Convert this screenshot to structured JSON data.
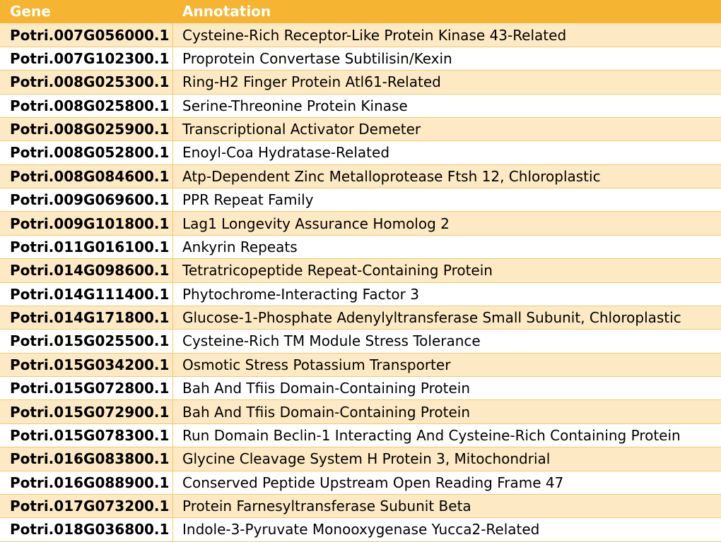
{
  "table": {
    "headers": {
      "gene": "Gene",
      "annotation": "Annotation"
    },
    "rows": [
      {
        "gene": "Potri.007G056000.1",
        "annotation": "Cysteine-Rich Receptor-Like Protein Kinase 43-Related"
      },
      {
        "gene": "Potri.007G102300.1",
        "annotation": "Proprotein Convertase Subtilisin/Kexin"
      },
      {
        "gene": "Potri.008G025300.1",
        "annotation": "Ring-H2 Finger Protein Atl61-Related"
      },
      {
        "gene": "Potri.008G025800.1",
        "annotation": "Serine-Threonine Protein Kinase"
      },
      {
        "gene": "Potri.008G025900.1",
        "annotation": "Transcriptional Activator Demeter"
      },
      {
        "gene": "Potri.008G052800.1",
        "annotation": "Enoyl-Coa Hydratase-Related"
      },
      {
        "gene": "Potri.008G084600.1",
        "annotation": "Atp-Dependent Zinc Metalloprotease Ftsh 12, Chloroplastic"
      },
      {
        "gene": "Potri.009G069600.1",
        "annotation": "PPR Repeat Family"
      },
      {
        "gene": "Potri.009G101800.1",
        "annotation": "Lag1 Longevity Assurance Homolog 2"
      },
      {
        "gene": "Potri.011G016100.1",
        "annotation": "Ankyrin Repeats"
      },
      {
        "gene": "Potri.014G098600.1",
        "annotation": "Tetratricopeptide Repeat-Containing Protein"
      },
      {
        "gene": "Potri.014G111400.1",
        "annotation": "Phytochrome-Interacting Factor 3"
      },
      {
        "gene": "Potri.014G171800.1",
        "annotation": "Glucose-1-Phosphate Adenylyltransferase Small Subunit, Chloroplastic"
      },
      {
        "gene": "Potri.015G025500.1",
        "annotation": "Cysteine-Rich TM Module Stress Tolerance"
      },
      {
        "gene": "Potri.015G034200.1",
        "annotation": "Osmotic Stress Potassium Transporter"
      },
      {
        "gene": "Potri.015G072800.1",
        "annotation": "Bah And Tfiis Domain-Containing Protein"
      },
      {
        "gene": "Potri.015G072900.1",
        "annotation": "Bah And Tfiis Domain-Containing Protein"
      },
      {
        "gene": "Potri.015G078300.1",
        "annotation": "Run Domain Beclin-1 Interacting And Cysteine-Rich Containing Protein"
      },
      {
        "gene": "Potri.016G083800.1",
        "annotation": "Glycine Cleavage System H Protein 3, Mitochondrial"
      },
      {
        "gene": "Potri.016G088900.1",
        "annotation": "Conserved Peptide Upstream Open Reading Frame 47"
      },
      {
        "gene": "Potri.017G073200.1",
        "annotation": "Protein Farnesyltransferase Subunit Beta"
      },
      {
        "gene": "Potri.018G036800.1",
        "annotation": "Indole-3-Pyruvate Monooxygenase Yucca2-Related"
      }
    ]
  },
  "colors": {
    "header_bg": "#f5b532",
    "header_text": "#ffffff",
    "band_odd": "#fde9c4",
    "band_even": "#ffffff",
    "border": "#f3c96b"
  }
}
